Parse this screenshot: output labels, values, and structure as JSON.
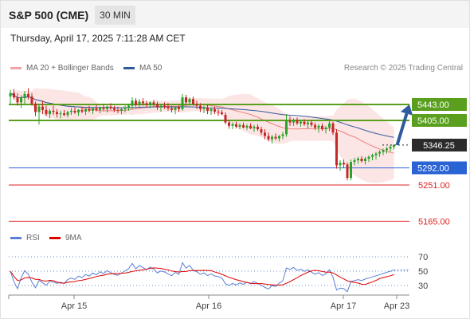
{
  "header": {
    "title": "S&P 500 (CME)",
    "timeframe": "30 MIN",
    "datetime": "Thursday, April 17, 2025 7:11:28 AM CET"
  },
  "legend": {
    "items": [
      {
        "label": "MA 20 + Bollinger Bands",
        "color": "#ef7f7f"
      },
      {
        "label": "MA 50",
        "color": "#2f5b9e"
      }
    ],
    "copyright": "Research © 2025 Trading Central"
  },
  "indicator_legend": {
    "items": [
      {
        "label": "RSI",
        "color": "#5b7fd6"
      },
      {
        "label": "9MA",
        "color": "#e00000"
      }
    ]
  },
  "chart_data": {
    "type": "candlestick",
    "x_ticks": [
      "Apr 15",
      "Apr 16",
      "Apr 17",
      "Apr 23"
    ],
    "price_range": [
      5150,
      5490
    ],
    "current_price": 5346.25,
    "levels": [
      {
        "value": 5443.0,
        "label": "5443.00",
        "kind": "resistance",
        "color": "#5aa01e"
      },
      {
        "value": 5405.0,
        "label": "5405.00",
        "kind": "resistance",
        "color": "#5aa01e"
      },
      {
        "value": 5346.25,
        "label": "5346.25",
        "kind": "last",
        "color": "#222222"
      },
      {
        "value": 5292.0,
        "label": "5292.00",
        "kind": "support",
        "color": "#2a63d4"
      },
      {
        "value": 5251.0,
        "label": "5251.00",
        "kind": "support",
        "color": "#e02020"
      },
      {
        "value": 5165.0,
        "label": "5165.00",
        "kind": "support",
        "color": "#e02020"
      }
    ],
    "projection": {
      "from": 5346.25,
      "to": 5443.0,
      "direction": "up"
    },
    "candles": [
      [
        5462,
        5478,
        5445,
        5470
      ],
      [
        5470,
        5480,
        5455,
        5460
      ],
      [
        5460,
        5470,
        5440,
        5448
      ],
      [
        5448,
        5465,
        5435,
        5458
      ],
      [
        5458,
        5475,
        5445,
        5468
      ],
      [
        5468,
        5482,
        5455,
        5462
      ],
      [
        5462,
        5470,
        5440,
        5445
      ],
      [
        5445,
        5450,
        5415,
        5425
      ],
      [
        5425,
        5445,
        5395,
        5438
      ],
      [
        5438,
        5452,
        5420,
        5430
      ],
      [
        5430,
        5440,
        5415,
        5420
      ],
      [
        5420,
        5432,
        5410,
        5428
      ],
      [
        5428,
        5440,
        5418,
        5425
      ],
      [
        5425,
        5432,
        5412,
        5420
      ],
      [
        5420,
        5428,
        5410,
        5422
      ],
      [
        5422,
        5430,
        5415,
        5418
      ],
      [
        5418,
        5428,
        5412,
        5425
      ],
      [
        5425,
        5435,
        5418,
        5428
      ],
      [
        5428,
        5436,
        5420,
        5424
      ],
      [
        5424,
        5432,
        5416,
        5430
      ],
      [
        5430,
        5438,
        5422,
        5426
      ],
      [
        5426,
        5434,
        5418,
        5432
      ],
      [
        5432,
        5440,
        5424,
        5428
      ],
      [
        5428,
        5436,
        5420,
        5434
      ],
      [
        5434,
        5442,
        5426,
        5430
      ],
      [
        5430,
        5438,
        5422,
        5436
      ],
      [
        5436,
        5444,
        5428,
        5432
      ],
      [
        5432,
        5440,
        5424,
        5438
      ],
      [
        5438,
        5446,
        5430,
        5434
      ],
      [
        5434,
        5440,
        5425,
        5430
      ],
      [
        5430,
        5438,
        5422,
        5428
      ],
      [
        5428,
        5436,
        5420,
        5432
      ],
      [
        5432,
        5440,
        5424,
        5436
      ],
      [
        5436,
        5444,
        5428,
        5440
      ],
      [
        5440,
        5460,
        5432,
        5452
      ],
      [
        5452,
        5458,
        5438,
        5442
      ],
      [
        5442,
        5456,
        5436,
        5450
      ],
      [
        5450,
        5458,
        5440,
        5446
      ],
      [
        5446,
        5452,
        5436,
        5442
      ],
      [
        5442,
        5450,
        5434,
        5448
      ],
      [
        5448,
        5454,
        5438,
        5444
      ],
      [
        5444,
        5450,
        5430,
        5436
      ],
      [
        5436,
        5444,
        5426,
        5440
      ],
      [
        5440,
        5448,
        5432,
        5438
      ],
      [
        5438,
        5446,
        5428,
        5434
      ],
      [
        5434,
        5440,
        5424,
        5430
      ],
      [
        5430,
        5438,
        5420,
        5436
      ],
      [
        5436,
        5442,
        5425,
        5432
      ],
      [
        5432,
        5468,
        5428,
        5460
      ],
      [
        5460,
        5466,
        5444,
        5448
      ],
      [
        5448,
        5460,
        5440,
        5456
      ],
      [
        5456,
        5462,
        5440,
        5444
      ],
      [
        5444,
        5452,
        5432,
        5440
      ],
      [
        5440,
        5446,
        5425,
        5432
      ],
      [
        5432,
        5440,
        5422,
        5436
      ],
      [
        5436,
        5442,
        5420,
        5428
      ],
      [
        5428,
        5436,
        5418,
        5432
      ],
      [
        5432,
        5438,
        5420,
        5426
      ],
      [
        5426,
        5432,
        5416,
        5424
      ],
      [
        5424,
        5430,
        5418,
        5420
      ],
      [
        5418,
        5424,
        5396,
        5400
      ],
      [
        5400,
        5406,
        5385,
        5392
      ],
      [
        5392,
        5400,
        5384,
        5396
      ],
      [
        5396,
        5402,
        5386,
        5390
      ],
      [
        5390,
        5398,
        5384,
        5394
      ],
      [
        5394,
        5400,
        5386,
        5388
      ],
      [
        5388,
        5396,
        5382,
        5392
      ],
      [
        5392,
        5398,
        5384,
        5386
      ],
      [
        5386,
        5394,
        5378,
        5390
      ],
      [
        5390,
        5396,
        5380,
        5384
      ],
      [
        5384,
        5390,
        5370,
        5376
      ],
      [
        5376,
        5384,
        5360,
        5368
      ],
      [
        5368,
        5376,
        5355,
        5360
      ],
      [
        5360,
        5370,
        5350,
        5366
      ],
      [
        5366,
        5374,
        5358,
        5362
      ],
      [
        5362,
        5370,
        5355,
        5368
      ],
      [
        5368,
        5378,
        5360,
        5372
      ],
      [
        5372,
        5420,
        5366,
        5404
      ],
      [
        5404,
        5414,
        5392,
        5400
      ],
      [
        5400,
        5410,
        5392,
        5406
      ],
      [
        5406,
        5412,
        5394,
        5398
      ],
      [
        5398,
        5406,
        5390,
        5402
      ],
      [
        5402,
        5408,
        5392,
        5396
      ],
      [
        5396,
        5404,
        5386,
        5400
      ],
      [
        5400,
        5406,
        5390,
        5394
      ],
      [
        5394,
        5400,
        5382,
        5388
      ],
      [
        5388,
        5396,
        5376,
        5392
      ],
      [
        5392,
        5398,
        5380,
        5384
      ],
      [
        5384,
        5392,
        5374,
        5388
      ],
      [
        5388,
        5404,
        5380,
        5398
      ],
      [
        5398,
        5402,
        5370,
        5376
      ],
      [
        5376,
        5384,
        5290,
        5298
      ],
      [
        5298,
        5310,
        5285,
        5304
      ],
      [
        5304,
        5312,
        5292,
        5300
      ],
      [
        5300,
        5305,
        5262,
        5268
      ],
      [
        5268,
        5312,
        5262,
        5306
      ],
      [
        5306,
        5316,
        5298,
        5310
      ],
      [
        5310,
        5318,
        5302,
        5314
      ],
      [
        5314,
        5320,
        5304,
        5308
      ],
      [
        5308,
        5318,
        5300,
        5314
      ],
      [
        5314,
        5322,
        5306,
        5318
      ],
      [
        5318,
        5326,
        5310,
        5322
      ],
      [
        5322,
        5330,
        5312,
        5326
      ],
      [
        5326,
        5334,
        5318,
        5330
      ],
      [
        5330,
        5338,
        5322,
        5334
      ],
      [
        5334,
        5342,
        5326,
        5338
      ],
      [
        5338,
        5346,
        5330,
        5342
      ],
      [
        5342,
        5348,
        5336,
        5346
      ]
    ]
  }
}
